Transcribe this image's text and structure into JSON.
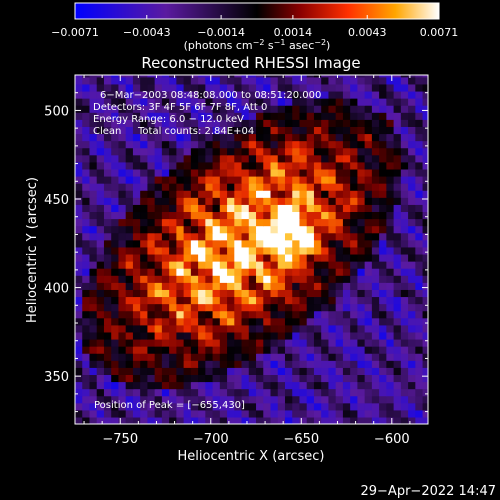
{
  "chart_data": {
    "type": "heatmap",
    "title": "Reconstructed RHESSI Image",
    "xlabel": "Heliocentric X (arcsec)",
    "ylabel": "Heliocentric Y (arcsec)",
    "xlim": [
      -775,
      -580
    ],
    "ylim": [
      323,
      520
    ],
    "x_ticks": [
      -750,
      -700,
      -650,
      -600
    ],
    "y_ticks": [
      350,
      400,
      450,
      500
    ],
    "x_tick_labels": [
      "−750",
      "−700",
      "−650",
      "−600"
    ],
    "y_tick_labels": [
      "350",
      "400",
      "450",
      "500"
    ],
    "colorbar": {
      "range": [
        -0.0071,
        0.0071
      ],
      "ticks": [
        -0.0071,
        -0.0043,
        -0.0014,
        0.0014,
        0.0043,
        0.0071
      ],
      "tick_labels": [
        "−0.0071",
        "−0.0043",
        "−0.0014",
        "0.0014",
        "0.0043",
        "0.0071"
      ],
      "units_pre": "(photons cm",
      "units_exp1": "−2",
      "units_mid": " s",
      "units_exp2": "−1",
      "units_mid2": " asec",
      "units_exp3": "−2",
      "units_post": ")",
      "colors": [
        "#0000ff",
        "#4b0082",
        "#000000",
        "#8b0000",
        "#ff4500",
        "#ffa500",
        "#ffffff"
      ]
    },
    "annotations": {
      "time_range": "6−Mar−2003 08:48:08.000 to 08:51:20.000",
      "detectors": "Detectors: 3F 4F 5F 6F 7F 8F, Att 0",
      "energy": "Energy Range: 6.0 − 12.0 keV",
      "clean": "Clean",
      "total_counts": "Total counts: 2.84E+04",
      "peak": "Position of Peak = [−655,430]"
    },
    "peak": {
      "x": -655,
      "y": 430
    },
    "source": {
      "center_x": -683,
      "center_y": 425,
      "sigma_major": 52,
      "sigma_minor": 28,
      "angle_deg": 40
    }
  },
  "footer": {
    "date": "29−Apr−2022 14:47"
  }
}
